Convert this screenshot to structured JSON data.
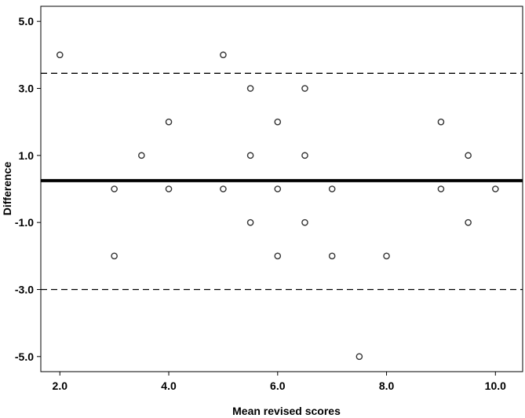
{
  "chart_data": {
    "type": "scatter",
    "title": "",
    "xlabel": "Mean revised scores",
    "ylabel": "Difference",
    "xlim": [
      1.65,
      10.5
    ],
    "ylim": [
      -5.45,
      5.45
    ],
    "xticks": [
      2.0,
      4.0,
      6.0,
      8.0,
      10.0
    ],
    "xtick_labels": [
      "2.0",
      "4.0",
      "6.0",
      "8.0",
      "10.0"
    ],
    "yticks": [
      5.0,
      3.0,
      1.0,
      -1.0,
      -3.0,
      -5.0
    ],
    "ytick_labels": [
      "5.0",
      "3.0",
      "1.0",
      "-1.0",
      "-3.0",
      "-5.0"
    ],
    "grid": false,
    "reference_lines": [
      {
        "y": 0.25,
        "style": "solid"
      },
      {
        "y": 3.45,
        "style": "dashed"
      },
      {
        "y": -3.0,
        "style": "dashed"
      }
    ],
    "points": [
      {
        "x": 2.0,
        "y": 4
      },
      {
        "x": 3.0,
        "y": 0
      },
      {
        "x": 3.0,
        "y": -2
      },
      {
        "x": 3.5,
        "y": 1
      },
      {
        "x": 4.0,
        "y": 2
      },
      {
        "x": 4.0,
        "y": 0
      },
      {
        "x": 5.0,
        "y": 4
      },
      {
        "x": 5.0,
        "y": 0
      },
      {
        "x": 5.5,
        "y": 3
      },
      {
        "x": 5.5,
        "y": 1
      },
      {
        "x": 5.5,
        "y": -1
      },
      {
        "x": 6.0,
        "y": 2
      },
      {
        "x": 6.0,
        "y": 0
      },
      {
        "x": 6.0,
        "y": -2
      },
      {
        "x": 6.5,
        "y": 3
      },
      {
        "x": 6.5,
        "y": 1
      },
      {
        "x": 6.5,
        "y": -1
      },
      {
        "x": 7.0,
        "y": 0
      },
      {
        "x": 7.0,
        "y": -2
      },
      {
        "x": 7.5,
        "y": -5
      },
      {
        "x": 8.0,
        "y": -2
      },
      {
        "x": 9.0,
        "y": 2
      },
      {
        "x": 9.0,
        "y": 0
      },
      {
        "x": 9.5,
        "y": 1
      },
      {
        "x": 9.5,
        "y": -1
      },
      {
        "x": 10.0,
        "y": 0
      }
    ]
  }
}
